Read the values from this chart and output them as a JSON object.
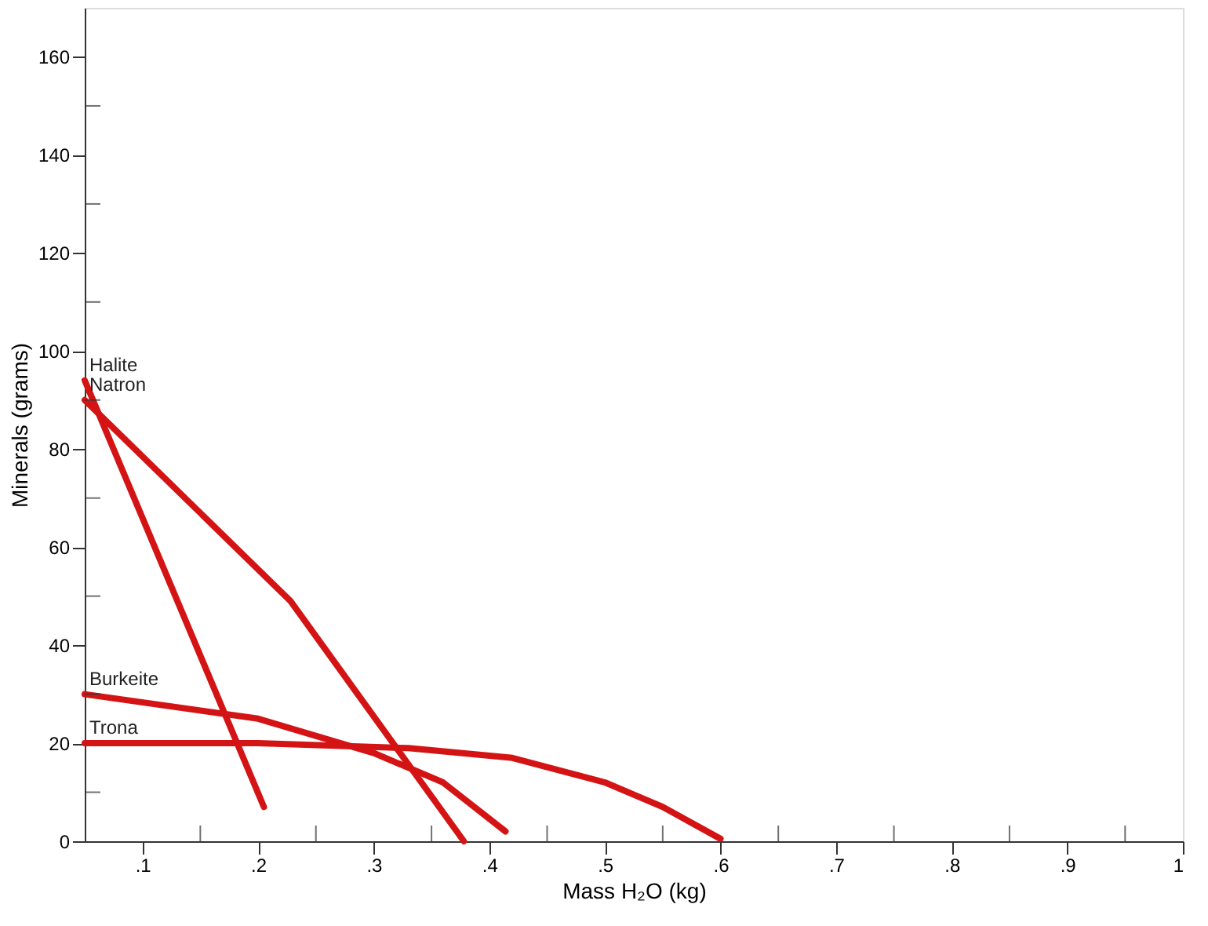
{
  "chart_data": {
    "type": "line",
    "xlabel": "Mass H₂O (kg)",
    "ylabel": "Minerals (grams)",
    "xlim": [
      0.05,
      1.0
    ],
    "ylim": [
      0,
      170
    ],
    "xticks": [
      {
        "value": 0.1,
        "label": ".1"
      },
      {
        "value": 0.15,
        "label": null
      },
      {
        "value": 0.2,
        "label": ".2"
      },
      {
        "value": 0.25,
        "label": null
      },
      {
        "value": 0.3,
        "label": ".3"
      },
      {
        "value": 0.35,
        "label": null
      },
      {
        "value": 0.4,
        "label": ".4"
      },
      {
        "value": 0.45,
        "label": null
      },
      {
        "value": 0.5,
        "label": ".5"
      },
      {
        "value": 0.55,
        "label": null
      },
      {
        "value": 0.6,
        "label": ".6"
      },
      {
        "value": 0.65,
        "label": null
      },
      {
        "value": 0.7,
        "label": ".7"
      },
      {
        "value": 0.75,
        "label": null
      },
      {
        "value": 0.8,
        "label": ".8"
      },
      {
        "value": 0.85,
        "label": null
      },
      {
        "value": 0.9,
        "label": ".9"
      },
      {
        "value": 0.95,
        "label": null
      },
      {
        "value": 1.0,
        "label": "1"
      }
    ],
    "yticks": [
      0,
      {
        "value": 10,
        "label": null
      },
      20,
      {
        "value": 30,
        "label": null
      },
      40,
      {
        "value": 50,
        "label": null
      },
      60,
      {
        "value": 70,
        "label": null
      },
      80,
      {
        "value": 90,
        "label": null
      },
      100,
      {
        "value": 110,
        "label": null
      },
      120,
      {
        "value": 130,
        "label": null
      },
      140,
      {
        "value": 150,
        "label": null
      },
      160
    ],
    "grid": false,
    "legend": false,
    "marker": "none",
    "line_style": "solid",
    "series": [
      {
        "name": "Halite",
        "color": "#d41414",
        "x": [
          0.05,
          0.205
        ],
        "values": [
          94,
          7
        ]
      },
      {
        "name": "Natron",
        "color": "#d41414",
        "x": [
          0.05,
          0.228,
          0.378
        ],
        "values": [
          90,
          49,
          0
        ]
      },
      {
        "name": "Burkeite",
        "color": "#d41414",
        "x": [
          0.05,
          0.2,
          0.3,
          0.36,
          0.414
        ],
        "values": [
          30,
          25,
          18,
          12,
          2
        ]
      },
      {
        "name": "Trona",
        "color": "#d41414",
        "x": [
          0.05,
          0.2,
          0.33,
          0.42,
          0.5,
          0.55,
          0.6
        ],
        "values": [
          20,
          20,
          19,
          17,
          12,
          7,
          0.5
        ]
      }
    ]
  }
}
